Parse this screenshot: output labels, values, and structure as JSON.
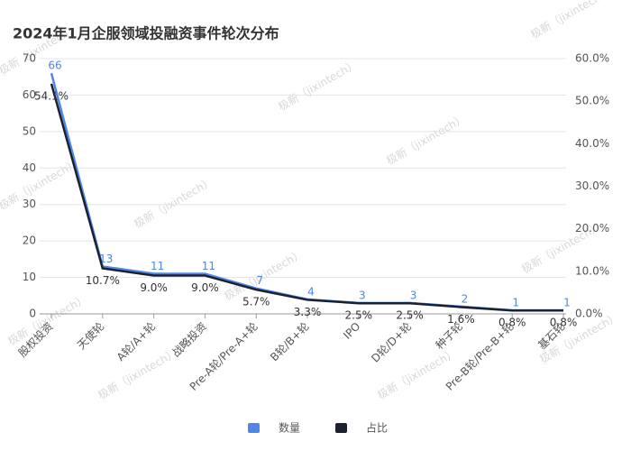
{
  "watermark": "极新（jixintech）",
  "chart_data": {
    "type": "line",
    "title": "2024年1月企服领域投融资事件轮次分布",
    "categories": [
      "股权投资",
      "天使轮",
      "A轮/A+轮",
      "战略投资",
      "Pre-A轮/Pre-A+轮",
      "B轮/B+轮",
      "IPO",
      "D轮/D+轮",
      "种子轮",
      "Pre-B轮/Pre-B+轮",
      "基石轮"
    ],
    "series": [
      {
        "name": "数量",
        "color": "#4f86e8",
        "values": [
          66,
          13,
          11,
          11,
          7,
          4,
          3,
          3,
          2,
          1,
          1
        ]
      },
      {
        "name": "占比",
        "color": "#1c2130",
        "axis": "y2",
        "values": [
          54.1,
          10.7,
          9.0,
          9.0,
          5.7,
          3.3,
          2.5,
          2.5,
          1.6,
          0.8,
          0.8
        ],
        "value_labels": [
          "54.1%",
          "10.7%",
          "9.0%",
          "9.0%",
          "5.7%",
          "3.3%",
          "2.5%",
          "2.5%",
          "1.6%",
          "0.8%",
          "0.8%"
        ]
      }
    ],
    "ylim": [
      0,
      70
    ],
    "yticks": [
      0,
      10,
      20,
      30,
      40,
      50,
      60,
      70
    ],
    "y2lim": [
      0,
      60
    ],
    "y2ticks": [
      {
        "value": 0,
        "label": "0.0%"
      },
      {
        "value": 10,
        "label": "10.0%"
      },
      {
        "value": 20,
        "label": "20.0%"
      },
      {
        "value": 30,
        "label": "30.0%"
      },
      {
        "value": 40,
        "label": "40.0%"
      },
      {
        "value": 50,
        "label": "50.0%"
      },
      {
        "value": 60,
        "label": "60.0%"
      }
    ],
    "grid": true
  }
}
